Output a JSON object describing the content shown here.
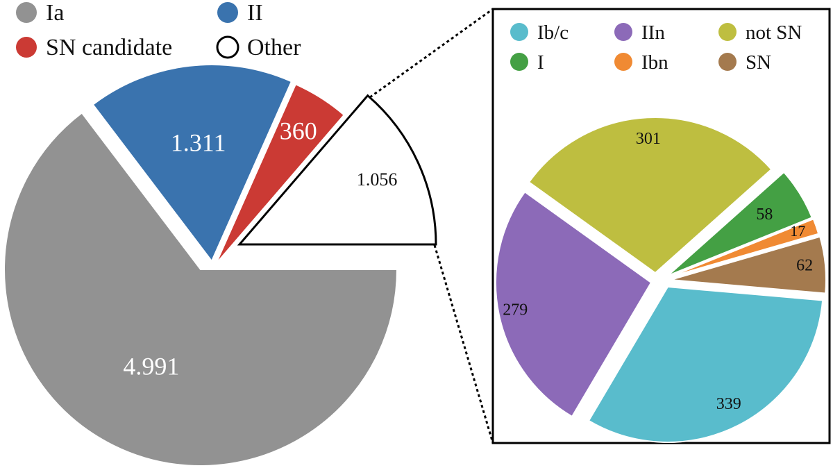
{
  "chart_data": [
    {
      "type": "pie",
      "categories": [
        "Ia",
        "II",
        "SN candidate",
        "Other"
      ],
      "values": [
        4991,
        1311,
        360,
        1056
      ],
      "value_labels": [
        "4.991",
        "1.311",
        "360",
        "1.056"
      ],
      "colors": [
        "#929292",
        "#3a73ae",
        "#cb3a34",
        "#ffffff"
      ],
      "label_colors": [
        "#ffffff",
        "#ffffff",
        "#ffffff",
        "#111111"
      ],
      "legend": "top-left",
      "exploded": true
    },
    {
      "type": "pie",
      "categories": [
        "Ib/c",
        "I",
        "IIn",
        "Ibn",
        "not SN",
        "SN"
      ],
      "values": [
        339,
        58,
        279,
        17,
        301,
        62
      ],
      "slice_order": [
        "Ib/c",
        "IIn",
        "not SN",
        "I",
        "Ibn",
        "SN"
      ],
      "colors": {
        "Ib/c": "#59bccc",
        "I": "#44a044",
        "IIn": "#8c6ab8",
        "Ibn": "#f08a33",
        "not SN": "#bebe40",
        "SN": "#a47a4e"
      },
      "legend": "top",
      "exploded": true
    }
  ]
}
